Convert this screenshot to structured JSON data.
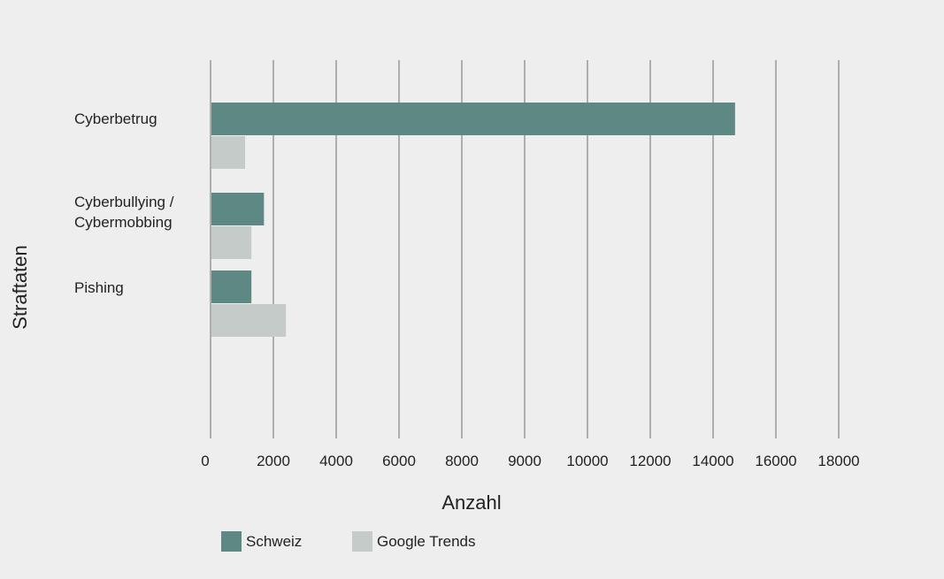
{
  "chart_data": {
    "type": "bar",
    "orientation": "horizontal",
    "categories": [
      [
        "Cyberbetrug"
      ],
      [
        "Cyberbullying /",
        "Cybermobbing"
      ],
      [
        "Pishing"
      ]
    ],
    "series": [
      {
        "name": "Schweiz",
        "color": "#5e8883",
        "values": [
          16700,
          1700,
          1300
        ]
      },
      {
        "name": "Google Trends",
        "color": "#c5cbc9",
        "values": [
          1100,
          1300,
          2400
        ]
      }
    ],
    "tick_labels": [
      "0",
      "2000",
      "4000",
      "6000",
      "8000",
      "9000",
      "10000",
      "12000",
      "14000",
      "16000",
      "18000"
    ],
    "xlim": [
      0,
      20000
    ],
    "xlabel": "Anzahl",
    "ylabel": "Straftaten",
    "grid": true,
    "legend": "bottom"
  }
}
